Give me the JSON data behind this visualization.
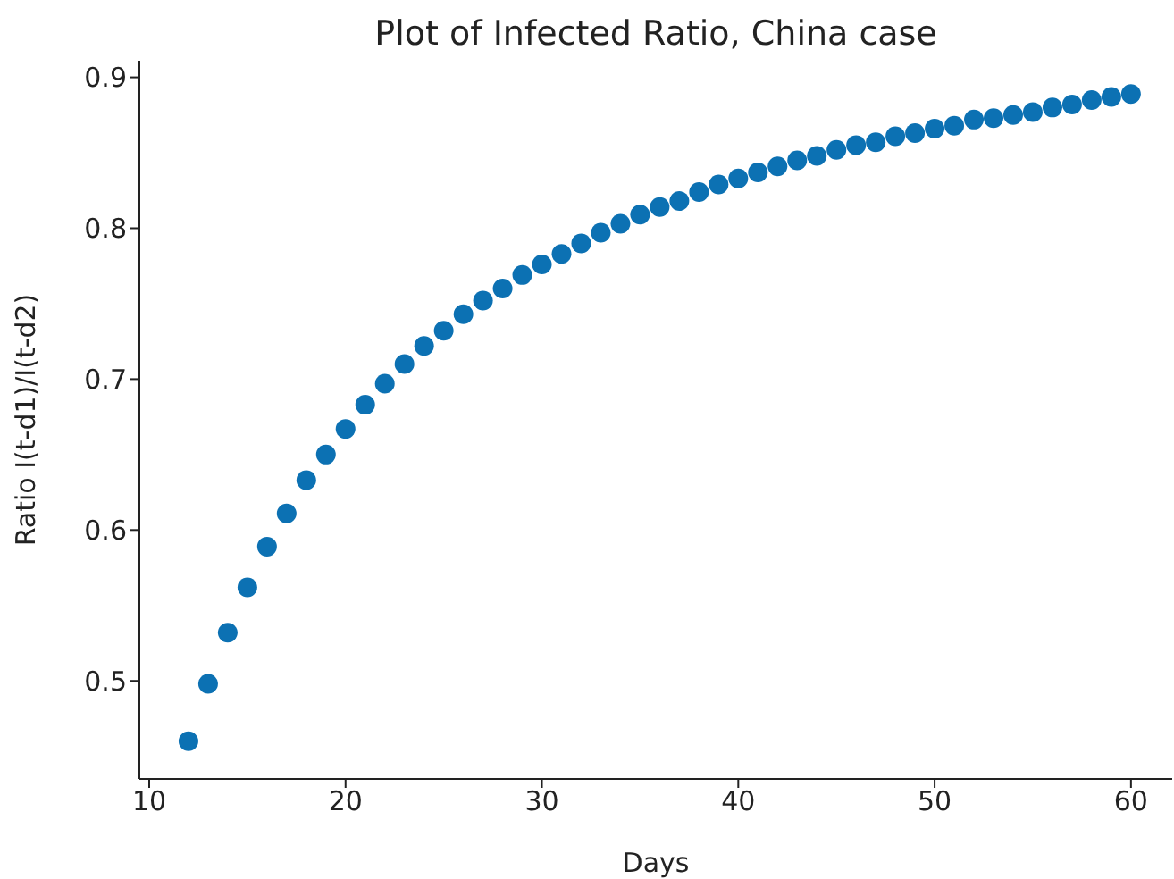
{
  "chart_data": {
    "type": "scatter",
    "title": "Plot of Infected Ratio, China case",
    "xlabel": "Days",
    "ylabel": "Ratio I(t-d1)/I(t-d2)",
    "x": [
      12,
      13,
      14,
      15,
      16,
      17,
      18,
      19,
      20,
      21,
      22,
      23,
      24,
      25,
      26,
      27,
      28,
      29,
      30,
      31,
      32,
      33,
      34,
      35,
      36,
      37,
      38,
      39,
      40,
      41,
      42,
      43,
      44,
      45,
      46,
      47,
      48,
      49,
      50,
      51,
      52,
      53,
      54,
      55,
      56,
      57,
      58,
      59,
      60
    ],
    "series": [
      {
        "color": "#0c71b3",
        "values": [
          0.46,
          0.498,
          0.532,
          0.562,
          0.589,
          0.611,
          0.633,
          0.65,
          0.667,
          0.683,
          0.697,
          0.71,
          0.722,
          0.732,
          0.743,
          0.752,
          0.76,
          0.769,
          0.776,
          0.783,
          0.79,
          0.797,
          0.803,
          0.809,
          0.814,
          0.818,
          0.824,
          0.829,
          0.833,
          0.837,
          0.841,
          0.845,
          0.848,
          0.852,
          0.855,
          0.857,
          0.861,
          0.863,
          0.866,
          0.868,
          0.872,
          0.873,
          0.875,
          0.877,
          0.88,
          0.882,
          0.885,
          0.887,
          0.889
        ]
      }
    ],
    "xlim": [
      9.5,
      62.1
    ],
    "xticks": [
      10,
      20,
      30,
      40,
      50,
      60
    ],
    "ylim": [
      0.435,
      0.911
    ],
    "yticks": [
      0.5,
      0.6,
      0.7,
      0.8,
      0.9
    ],
    "grid": false,
    "legend": false,
    "marker": "circle"
  }
}
